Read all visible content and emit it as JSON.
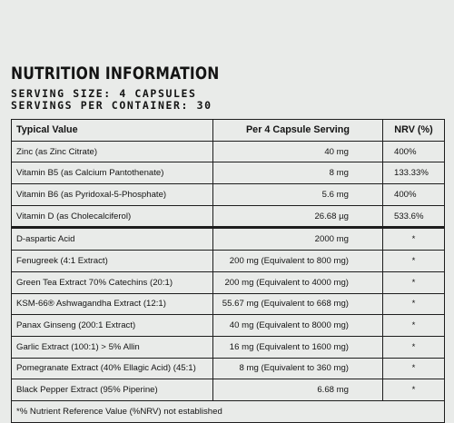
{
  "heading": {
    "title": "NUTRITION INFORMATION",
    "serving_size": "SERVING SIZE: 4 CAPSULES",
    "servings_per_container": "SERVINGS PER CONTAINER: 30"
  },
  "table": {
    "headers": [
      "Typical Value",
      "Per 4 Capsule Serving",
      "NRV (%)"
    ],
    "rows": [
      [
        "Zinc (as Zinc Citrate)",
        "40 mg",
        "400%"
      ],
      [
        "Vitamin B5 (as Calcium Pantothenate)",
        "8 mg",
        "133.33%"
      ],
      [
        "Vitamin B6 (as Pyridoxal-5-Phosphate)",
        "5.6 mg",
        "400%"
      ],
      [
        "Vitamin D (as Cholecalciferol)",
        "26.68 µg",
        "533.6%"
      ],
      [
        "D-aspartic Acid",
        "2000 mg",
        "*"
      ],
      [
        "Fenugreek (4:1 Extract)",
        "200 mg (Equivalent to 800 mg)",
        "*"
      ],
      [
        "Green Tea Extract 70% Catechins (20:1)",
        "200 mg (Equivalent to 4000 mg)",
        "*"
      ],
      [
        "KSM-66® Ashwagandha Extract (12:1)",
        "55.67 mg (Equivalent to 668 mg)",
        "*"
      ],
      [
        "Panax Ginseng (200:1 Extract)",
        "40 mg (Equivalent to 8000 mg)",
        "*"
      ],
      [
        "Garlic Extract (100:1) > 5% Allin",
        "16 mg (Equivalent to 1600 mg)",
        "*"
      ],
      [
        "Pomegranate Extract (40% Ellagic Acid) (45:1)",
        "8 mg (Equivalent to 360 mg)",
        "*"
      ],
      [
        "Black Pepper Extract (95% Piperine)",
        "6.68 mg",
        "*"
      ]
    ],
    "footnote": "*% Nutrient Reference Value (%NRV) not established"
  }
}
